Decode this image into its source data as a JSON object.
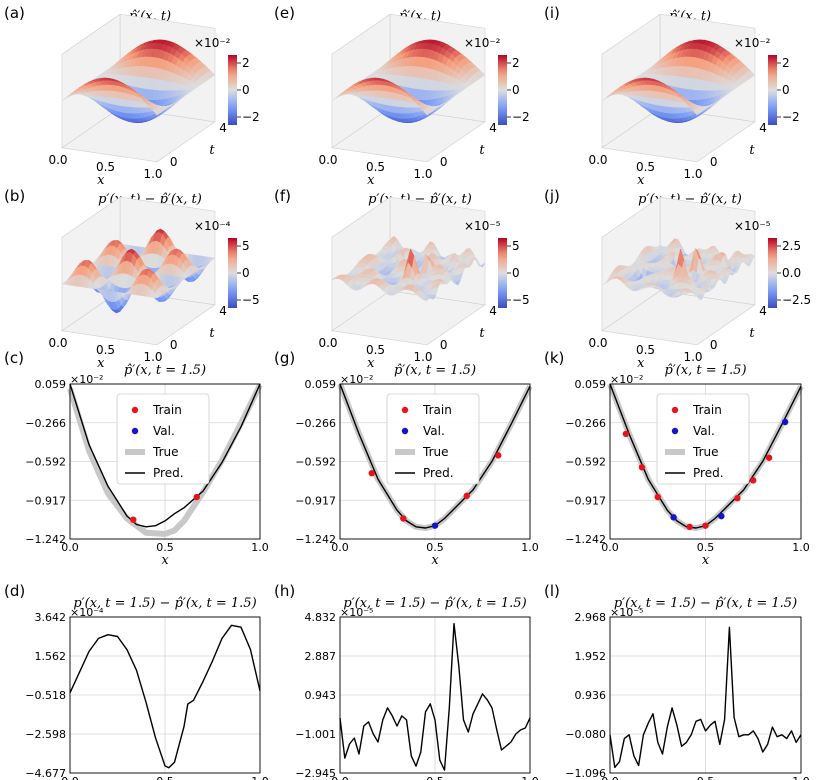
{
  "colors": {
    "train": "#e8141b",
    "val": "#1515c8",
    "true": "#c8c8c8",
    "pred": "#000000",
    "grid": "#d6d6d6"
  },
  "surface_panels": [
    {
      "label": "(a)",
      "title": "p̂′(x, t)",
      "exponent": "×10⁻²",
      "cbar_ticks": [
        "2",
        "0",
        "−2"
      ],
      "x_ticks": [
        "0.0",
        "0.5",
        "1.0"
      ],
      "xlabel": "x",
      "t_ticks": [
        "0",
        "4"
      ],
      "tlabel": "t",
      "kind": "smooth"
    },
    {
      "label": "(e)",
      "title": "p̂′(x, t)",
      "exponent": "×10⁻²",
      "cbar_ticks": [
        "2",
        "0",
        "−2"
      ],
      "x_ticks": [
        "0.0",
        "0.5",
        "1.0"
      ],
      "xlabel": "x",
      "t_ticks": [
        "0",
        "4"
      ],
      "tlabel": "t",
      "kind": "smooth"
    },
    {
      "label": "(i)",
      "title": "p̂′(x, t)",
      "exponent": "×10⁻²",
      "cbar_ticks": [
        "2",
        "0",
        "−2"
      ],
      "x_ticks": [
        "0.0",
        "0.5",
        "1.0"
      ],
      "xlabel": "x",
      "t_ticks": [
        "0",
        "4"
      ],
      "tlabel": "t",
      "kind": "smooth"
    },
    {
      "label": "(b)",
      "title": "p′(x, t) − p̂′(x, t)",
      "exponent": "×10⁻⁴",
      "cbar_ticks": [
        "5",
        "0",
        "−5"
      ],
      "x_ticks": [
        "0.0",
        "0.5",
        "1.0"
      ],
      "xlabel": "x",
      "t_ticks": [
        "0",
        "4"
      ],
      "tlabel": "t",
      "kind": "bumps"
    },
    {
      "label": "(f)",
      "title": "p′(x, t) − p̂′(x, t)",
      "exponent": "×10⁻⁵",
      "cbar_ticks": [
        "5",
        "0",
        "−5"
      ],
      "x_ticks": [
        "0.0",
        "0.5",
        "1.0"
      ],
      "xlabel": "x",
      "t_ticks": [
        "0",
        "4"
      ],
      "tlabel": "t",
      "kind": "noisy"
    },
    {
      "label": "(j)",
      "title": "p′(x, t) − p̂′(x, t)",
      "exponent": "×10⁻⁵",
      "cbar_ticks": [
        "2.5",
        "0.0",
        "−2.5"
      ],
      "x_ticks": [
        "0.0",
        "0.5",
        "1.0"
      ],
      "xlabel": "x",
      "t_ticks": [
        "0",
        "4"
      ],
      "tlabel": "t",
      "kind": "noisy"
    }
  ],
  "chart_data": [
    {
      "type": "line",
      "label": "(c)",
      "title": "p̂′(x, t = 1.5)",
      "exponent": "×10⁻²",
      "xlabel": "x",
      "x_ticks": [
        "0.0",
        "0.5",
        "1.0"
      ],
      "y_ticks": [
        "0.059",
        "−0.266",
        "−0.592",
        "−0.917",
        "−1.242"
      ],
      "xlim": [
        0,
        1
      ],
      "ylim": [
        -1.242,
        0.059
      ],
      "legend": [
        "Train",
        "Val.",
        "True",
        "Pred."
      ],
      "pred": {
        "x": [
          0,
          0.1,
          0.2,
          0.3,
          0.35,
          0.4,
          0.45,
          0.5,
          0.55,
          0.6,
          0.7,
          0.8,
          0.9,
          1.0
        ],
        "y": [
          0.059,
          -0.45,
          -0.8,
          -1.05,
          -1.12,
          -1.14,
          -1.13,
          -1.09,
          -1.03,
          -0.98,
          -0.84,
          -0.6,
          -0.3,
          0.059
        ]
      },
      "true": {
        "x": [
          0,
          0.1,
          0.2,
          0.3,
          0.4,
          0.5,
          0.55,
          0.6,
          0.7,
          0.8,
          0.9,
          1.0
        ],
        "y": [
          0.02,
          -0.5,
          -0.86,
          -1.07,
          -1.19,
          -1.2,
          -1.17,
          -1.09,
          -0.85,
          -0.58,
          -0.27,
          0.05
        ]
      },
      "train": {
        "x": [
          0.333,
          0.667
        ],
        "y": [
          -1.08,
          -0.89
        ]
      },
      "val": {
        "x": [],
        "y": []
      }
    },
    {
      "type": "line",
      "label": "(g)",
      "title": "p̂′(x, t = 1.5)",
      "exponent": "×10⁻²",
      "xlabel": "x",
      "x_ticks": [
        "0.0",
        "0.5",
        "1.0"
      ],
      "y_ticks": [
        "0.059",
        "−0.266",
        "−0.592",
        "−0.917",
        "−1.242"
      ],
      "xlim": [
        0,
        1
      ],
      "ylim": [
        -1.242,
        0.059
      ],
      "legend": [
        "Train",
        "Val.",
        "True",
        "Pred."
      ],
      "pred": {
        "x": [
          0,
          0.1,
          0.2,
          0.3,
          0.35,
          0.4,
          0.45,
          0.5,
          0.55,
          0.6,
          0.7,
          0.8,
          0.9,
          1.0
        ],
        "y": [
          0.059,
          -0.36,
          -0.74,
          -1.0,
          -1.09,
          -1.14,
          -1.15,
          -1.13,
          -1.07,
          -0.99,
          -0.83,
          -0.59,
          -0.28,
          0.04
        ]
      },
      "true": {
        "x": [
          0,
          0.1,
          0.2,
          0.3,
          0.35,
          0.4,
          0.45,
          0.5,
          0.55,
          0.6,
          0.7,
          0.8,
          0.9,
          1.0
        ],
        "y": [
          0.059,
          -0.36,
          -0.74,
          -1.0,
          -1.09,
          -1.14,
          -1.15,
          -1.13,
          -1.07,
          -0.99,
          -0.83,
          -0.59,
          -0.28,
          0.04
        ]
      },
      "train": {
        "x": [
          0.167,
          0.333,
          0.667,
          0.833
        ],
        "y": [
          -0.69,
          -1.07,
          -0.88,
          -0.54
        ]
      },
      "val": {
        "x": [
          0.5
        ],
        "y": [
          -1.13
        ]
      }
    },
    {
      "type": "line",
      "label": "(k)",
      "title": "p̂′(x, t = 1.5)",
      "exponent": "×10⁻²",
      "xlabel": "x",
      "x_ticks": [
        "0.0",
        "0.5",
        "1.0"
      ],
      "y_ticks": [
        "0.059",
        "−0.266",
        "−0.592",
        "−0.917",
        "−1.242"
      ],
      "xlim": [
        0,
        1
      ],
      "ylim": [
        -1.242,
        0.059
      ],
      "legend": [
        "Train",
        "Val.",
        "True",
        "Pred."
      ],
      "pred": {
        "x": [
          0,
          0.1,
          0.2,
          0.3,
          0.35,
          0.4,
          0.45,
          0.5,
          0.55,
          0.6,
          0.7,
          0.8,
          0.9,
          1.0
        ],
        "y": [
          0.059,
          -0.36,
          -0.74,
          -1.0,
          -1.09,
          -1.14,
          -1.15,
          -1.13,
          -1.07,
          -0.99,
          -0.83,
          -0.59,
          -0.28,
          0.04
        ]
      },
      "true": {
        "x": [
          0,
          0.1,
          0.2,
          0.3,
          0.35,
          0.4,
          0.45,
          0.5,
          0.55,
          0.6,
          0.7,
          0.8,
          0.9,
          1.0
        ],
        "y": [
          0.059,
          -0.36,
          -0.74,
          -1.0,
          -1.09,
          -1.14,
          -1.15,
          -1.13,
          -1.07,
          -0.99,
          -0.83,
          -0.59,
          -0.28,
          0.04
        ]
      },
      "train": {
        "x": [
          0.083,
          0.167,
          0.25,
          0.417,
          0.5,
          0.667,
          0.75,
          0.833
        ],
        "y": [
          -0.36,
          -0.64,
          -0.89,
          -1.14,
          -1.13,
          -0.9,
          -0.75,
          -0.56
        ]
      },
      "val": {
        "x": [
          0.333,
          0.583,
          0.917
        ],
        "y": [
          -1.06,
          -1.05,
          -0.26
        ]
      }
    },
    {
      "type": "line",
      "label": "(d)",
      "title": "p′(x, t = 1.5) − p̂′(x, t = 1.5)",
      "exponent": "×10⁻⁴",
      "xlabel": "x",
      "x_ticks": [
        "0.0",
        "0.5",
        "1.0"
      ],
      "y_ticks": [
        "3.642",
        "1.562",
        "−0.518",
        "−2.598",
        "−4.677"
      ],
      "xlim": [
        0,
        1
      ],
      "ylim": [
        -4.677,
        3.642
      ],
      "pred": {
        "x": [
          0,
          0.05,
          0.1,
          0.15,
          0.2,
          0.25,
          0.3,
          0.35,
          0.4,
          0.45,
          0.5,
          0.52,
          0.55,
          0.6,
          0.62,
          0.65,
          0.7,
          0.75,
          0.8,
          0.85,
          0.9,
          0.95,
          1.0
        ],
        "y": [
          -0.4,
          0.7,
          1.8,
          2.5,
          2.7,
          2.6,
          1.9,
          0.8,
          -0.9,
          -2.8,
          -4.3,
          -4.4,
          -4.1,
          -2.2,
          -1.0,
          -0.8,
          0.2,
          1.3,
          2.5,
          3.2,
          3.1,
          1.9,
          -0.3
        ]
      }
    },
    {
      "type": "line",
      "label": "(h)",
      "title": "p′(x, t = 1.5) − p̂′(x, t = 1.5)",
      "exponent": "×10⁻⁵",
      "xlabel": "x",
      "x_ticks": [
        "0.0",
        "0.5",
        "1.0"
      ],
      "y_ticks": [
        "4.832",
        "2.887",
        "0.943",
        "−1.001",
        "−2.945"
      ],
      "xlim": [
        0,
        1
      ],
      "ylim": [
        -2.945,
        4.832
      ],
      "pred": {
        "x": [
          0,
          0.025,
          0.05,
          0.075,
          0.1,
          0.125,
          0.15,
          0.175,
          0.2,
          0.225,
          0.25,
          0.275,
          0.3,
          0.325,
          0.35,
          0.375,
          0.4,
          0.425,
          0.45,
          0.475,
          0.5,
          0.525,
          0.55,
          0.575,
          0.6,
          0.625,
          0.65,
          0.675,
          0.7,
          0.725,
          0.75,
          0.775,
          0.8,
          0.825,
          0.85,
          0.875,
          0.9,
          0.925,
          0.95,
          0.975,
          1.0
        ],
        "y": [
          -0.2,
          -2.2,
          -1.5,
          -1.2,
          -2.0,
          -0.6,
          -0.4,
          -1.0,
          -1.4,
          -0.3,
          0.3,
          -0.1,
          -0.6,
          -0.1,
          -0.3,
          -2.1,
          -2.6,
          -1.9,
          0.1,
          0.5,
          -0.3,
          -2.3,
          -2.8,
          0.3,
          4.5,
          2.4,
          -0.3,
          -0.9,
          0.0,
          0.5,
          1.0,
          0.7,
          0.3,
          -0.8,
          -1.8,
          -1.6,
          -1.4,
          -1.0,
          -0.8,
          -0.7,
          -0.2
        ]
      }
    },
    {
      "type": "line",
      "label": "(l)",
      "title": "p′(x, t = 1.5) − p̂′(x, t = 1.5)",
      "exponent": "×10⁻⁵",
      "xlabel": "x",
      "x_ticks": [
        "0.0",
        "0.5",
        "1.0"
      ],
      "y_ticks": [
        "2.968",
        "1.952",
        "0.936",
        "−0.080",
        "−1.096"
      ],
      "xlim": [
        0,
        1
      ],
      "ylim": [
        -1.096,
        2.968
      ],
      "pred": {
        "x": [
          0,
          0.025,
          0.05,
          0.075,
          0.1,
          0.125,
          0.15,
          0.175,
          0.2,
          0.225,
          0.25,
          0.275,
          0.3,
          0.325,
          0.35,
          0.375,
          0.4,
          0.425,
          0.45,
          0.475,
          0.5,
          0.525,
          0.55,
          0.575,
          0.6,
          0.625,
          0.65,
          0.675,
          0.7,
          0.725,
          0.75,
          0.775,
          0.8,
          0.825,
          0.85,
          0.875,
          0.9,
          0.925,
          0.95,
          0.975,
          1.0
        ],
        "y": [
          -0.1,
          -0.95,
          -0.8,
          -0.2,
          -0.1,
          -0.65,
          -0.9,
          -0.1,
          0.2,
          0.45,
          -0.3,
          -0.6,
          0.1,
          0.6,
          0.15,
          -0.4,
          -0.3,
          -0.1,
          0.25,
          0.3,
          0.0,
          0.15,
          0.25,
          -0.35,
          0.3,
          2.7,
          0.35,
          -0.15,
          -0.1,
          -0.1,
          0.0,
          -0.2,
          -0.55,
          -0.35,
          0.1,
          -0.15,
          -0.1,
          -0.2,
          0.0,
          -0.3,
          -0.1
        ]
      }
    }
  ]
}
